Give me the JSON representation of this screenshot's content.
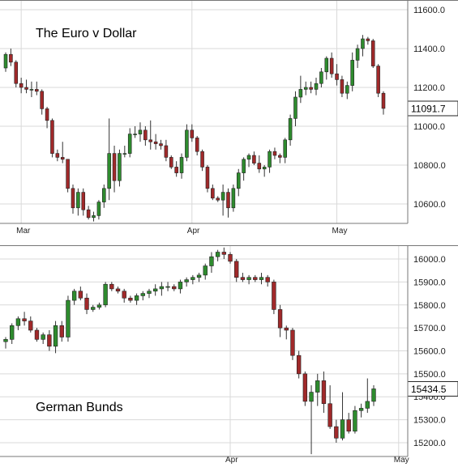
{
  "colors": {
    "up": "#2e8b2e",
    "down": "#a0292a",
    "wick": "#333333",
    "grid": "#d9d9d9"
  },
  "chart_data": [
    {
      "type": "candlestick",
      "title": "The Euro v Dollar",
      "ylim": [
        10500,
        11650
      ],
      "yticks": [
        10600,
        10800,
        11000,
        11200,
        11400,
        11600
      ],
      "ytick_labels": [
        "10600.0",
        "10800.0",
        "11000.0",
        "11200.0",
        "11400.0",
        "11600.0"
      ],
      "months": [
        {
          "label": "Mar",
          "index": 3
        },
        {
          "label": "Apr",
          "index": 36
        },
        {
          "label": "May",
          "index": 64
        }
      ],
      "last_value": "11091.7",
      "candles": [
        [
          11300,
          11380,
          11280,
          11370
        ],
        [
          11370,
          11400,
          11310,
          11330
        ],
        [
          11330,
          11340,
          11200,
          11220
        ],
        [
          11220,
          11250,
          11170,
          11200
        ],
        [
          11200,
          11240,
          11170,
          11190
        ],
        [
          11190,
          11230,
          11150,
          11190
        ],
        [
          11190,
          11230,
          11160,
          11180
        ],
        [
          11180,
          11190,
          11060,
          11090
        ],
        [
          11090,
          11100,
          10990,
          11030
        ],
        [
          11030,
          11040,
          10840,
          10860
        ],
        [
          10860,
          10880,
          10820,
          10840
        ],
        [
          10840,
          10920,
          10810,
          10830
        ],
        [
          10830,
          10830,
          10660,
          10680
        ],
        [
          10680,
          10700,
          10550,
          10580
        ],
        [
          10580,
          10680,
          10540,
          10660
        ],
        [
          10660,
          10680,
          10540,
          10570
        ],
        [
          10570,
          10590,
          10520,
          10530
        ],
        [
          10530,
          10560,
          10510,
          10540
        ],
        [
          10540,
          10620,
          10520,
          10610
        ],
        [
          10610,
          10700,
          10580,
          10680
        ],
        [
          10680,
          11040,
          10620,
          10860
        ],
        [
          10860,
          10900,
          10660,
          10720
        ],
        [
          10720,
          10880,
          10690,
          10860
        ],
        [
          10860,
          10900,
          10840,
          10860
        ],
        [
          10860,
          10990,
          10840,
          10960
        ],
        [
          10960,
          11000,
          10940,
          10960
        ],
        [
          10960,
          11020,
          10920,
          10980
        ],
        [
          10980,
          11000,
          10900,
          10930
        ],
        [
          10930,
          11030,
          10880,
          10920
        ],
        [
          10920,
          10960,
          10880,
          10910
        ],
        [
          10910,
          10930,
          10880,
          10900
        ],
        [
          10900,
          10930,
          10820,
          10840
        ],
        [
          10840,
          10850,
          10780,
          10790
        ],
        [
          10790,
          10820,
          10740,
          10760
        ],
        [
          10760,
          10860,
          10730,
          10840
        ],
        [
          10840,
          11010,
          10820,
          10980
        ],
        [
          10980,
          11010,
          10920,
          10940
        ],
        [
          10940,
          10950,
          10850,
          10870
        ],
        [
          10870,
          10880,
          10770,
          10790
        ],
        [
          10790,
          10800,
          10660,
          10680
        ],
        [
          10680,
          10700,
          10620,
          10630
        ],
        [
          10630,
          10640,
          10610,
          10620
        ],
        [
          10620,
          10700,
          10540,
          10660
        ],
        [
          10660,
          10680,
          10530,
          10580
        ],
        [
          10580,
          10700,
          10560,
          10680
        ],
        [
          10680,
          10780,
          10640,
          10760
        ],
        [
          10760,
          10840,
          10720,
          10830
        ],
        [
          10830,
          10860,
          10790,
          10850
        ],
        [
          10850,
          10870,
          10800,
          10810
        ],
        [
          10810,
          10850,
          10760,
          10780
        ],
        [
          10780,
          10800,
          10740,
          10790
        ],
        [
          10790,
          10880,
          10760,
          10870
        ],
        [
          10870,
          10890,
          10830,
          10850
        ],
        [
          10850,
          10860,
          10810,
          10840
        ],
        [
          10840,
          10940,
          10810,
          10930
        ],
        [
          10930,
          11060,
          10900,
          11040
        ],
        [
          11040,
          11180,
          11000,
          11150
        ],
        [
          11150,
          11260,
          11120,
          11190
        ],
        [
          11190,
          11230,
          11160,
          11200
        ],
        [
          11200,
          11230,
          11170,
          11190
        ],
        [
          11190,
          11250,
          11160,
          11220
        ],
        [
          11220,
          11300,
          11200,
          11280
        ],
        [
          11280,
          11360,
          11240,
          11350
        ],
        [
          11350,
          11380,
          11250,
          11270
        ],
        [
          11270,
          11320,
          11210,
          11240
        ],
        [
          11240,
          11260,
          11150,
          11170
        ],
        [
          11170,
          11230,
          11140,
          11210
        ],
        [
          11210,
          11380,
          11180,
          11340
        ],
        [
          11340,
          11420,
          11300,
          11400
        ],
        [
          11400,
          11470,
          11360,
          11450
        ],
        [
          11450,
          11460,
          11420,
          11440
        ],
        [
          11440,
          11450,
          11300,
          11310
        ],
        [
          11310,
          11320,
          11150,
          11170
        ],
        [
          11170,
          11180,
          11060,
          11092
        ]
      ]
    },
    {
      "type": "candlestick",
      "title": "German Bunds",
      "ylim": [
        15140,
        16060
      ],
      "yticks": [
        15200,
        15300,
        15400,
        15500,
        15600,
        15700,
        15800,
        15900,
        16000
      ],
      "ytick_labels": [
        "15200.0",
        "15300.0",
        "15400.0",
        "15500.0",
        "15600.0",
        "15700.0",
        "15800.0",
        "15900.0",
        "16000.0"
      ],
      "months": [
        {
          "label": "Apr",
          "index": 36
        },
        {
          "label": "May",
          "index": 63
        }
      ],
      "last_value": "15434.5",
      "candles": [
        [
          15640,
          15660,
          15610,
          15650
        ],
        [
          15650,
          15720,
          15630,
          15710
        ],
        [
          15710,
          15750,
          15690,
          15740
        ],
        [
          15740,
          15770,
          15710,
          15730
        ],
        [
          15730,
          15750,
          15680,
          15690
        ],
        [
          15690,
          15700,
          15640,
          15650
        ],
        [
          15650,
          15680,
          15630,
          15670
        ],
        [
          15670,
          15690,
          15600,
          15620
        ],
        [
          15620,
          15730,
          15590,
          15710
        ],
        [
          15710,
          15730,
          15640,
          15660
        ],
        [
          15660,
          15840,
          15640,
          15820
        ],
        [
          15820,
          15870,
          15800,
          15860
        ],
        [
          15860,
          15880,
          15820,
          15830
        ],
        [
          15830,
          15850,
          15760,
          15780
        ],
        [
          15780,
          15800,
          15770,
          15790
        ],
        [
          15790,
          15810,
          15780,
          15800
        ],
        [
          15800,
          15900,
          15790,
          15890
        ],
        [
          15890,
          15900,
          15860,
          15870
        ],
        [
          15870,
          15880,
          15850,
          15860
        ],
        [
          15860,
          15870,
          15810,
          15830
        ],
        [
          15830,
          15840,
          15810,
          15820
        ],
        [
          15820,
          15850,
          15800,
          15840
        ],
        [
          15840,
          15860,
          15820,
          15850
        ],
        [
          15850,
          15870,
          15830,
          15860
        ],
        [
          15860,
          15890,
          15840,
          15870
        ],
        [
          15870,
          15900,
          15840,
          15880
        ],
        [
          15880,
          15900,
          15860,
          15880
        ],
        [
          15880,
          15890,
          15860,
          15870
        ],
        [
          15870,
          15910,
          15850,
          15900
        ],
        [
          15900,
          15920,
          15880,
          15910
        ],
        [
          15910,
          15930,
          15890,
          15920
        ],
        [
          15920,
          15940,
          15900,
          15930
        ],
        [
          15930,
          15980,
          15910,
          15970
        ],
        [
          15970,
          16030,
          15940,
          16010
        ],
        [
          16010,
          16040,
          15990,
          16030
        ],
        [
          16030,
          16050,
          16000,
          16020
        ],
        [
          16020,
          16030,
          15980,
          15990
        ],
        [
          15990,
          16000,
          15900,
          15920
        ],
        [
          15920,
          15940,
          15900,
          15910
        ],
        [
          15910,
          15930,
          15890,
          15920
        ],
        [
          15920,
          15930,
          15900,
          15910
        ],
        [
          15910,
          15940,
          15890,
          15920
        ],
        [
          15920,
          15930,
          15880,
          15900
        ],
        [
          15900,
          15910,
          15760,
          15780
        ],
        [
          15780,
          15800,
          15660,
          15700
        ],
        [
          15700,
          15710,
          15650,
          15690
        ],
        [
          15690,
          15700,
          15560,
          15580
        ],
        [
          15580,
          15600,
          15480,
          15500
        ],
        [
          15500,
          15510,
          15360,
          15380
        ],
        [
          15380,
          15450,
          15150,
          15420
        ],
        [
          15420,
          15500,
          15360,
          15470
        ],
        [
          15470,
          15510,
          15330,
          15370
        ],
        [
          15370,
          15450,
          15260,
          15270
        ],
        [
          15270,
          15300,
          15200,
          15220
        ],
        [
          15220,
          15420,
          15210,
          15300
        ],
        [
          15300,
          15330,
          15240,
          15250
        ],
        [
          15250,
          15360,
          15240,
          15340
        ],
        [
          15340,
          15370,
          15310,
          15350
        ],
        [
          15350,
          15480,
          15330,
          15380
        ],
        [
          15380,
          15450,
          15360,
          15434.5
        ]
      ]
    }
  ]
}
